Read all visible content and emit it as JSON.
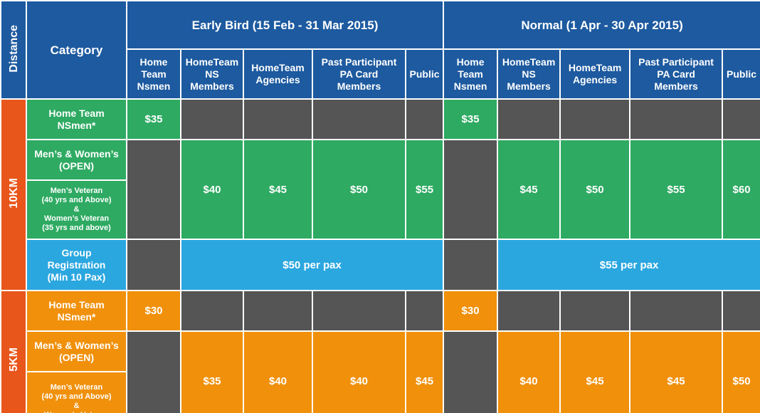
{
  "header": {
    "distance": "Distance",
    "category": "Category",
    "periods": [
      {
        "title": "Early Bird (15 Feb - 31 Mar 2015)",
        "columns": [
          [
            "Home",
            "Team",
            "Nsmen"
          ],
          [
            "HomeTeam",
            "NS",
            "Members"
          ],
          [
            "HomeTeam",
            "Agencies"
          ],
          [
            "Past Participant",
            "PA Card",
            "Members"
          ],
          [
            "Public"
          ]
        ]
      },
      {
        "title": "Normal (1 Apr - 30 Apr 2015)",
        "columns": [
          [
            "Home",
            "Team",
            "Nsmen"
          ],
          [
            "HomeTeam",
            "NS",
            "Members"
          ],
          [
            "HomeTeam",
            "Agencies"
          ],
          [
            "Past Participant",
            "PA Card",
            "Members"
          ],
          [
            "Public"
          ]
        ]
      }
    ]
  },
  "sections": [
    {
      "distance": "10KM",
      "color": "#2eaa62",
      "home_team": {
        "label": [
          "Home Team",
          "NSmen*"
        ],
        "prices": [
          "$35",
          "$35"
        ]
      },
      "open": {
        "label": [
          "Men’s & Women’s",
          "(OPEN)"
        ]
      },
      "veteran": {
        "label": [
          "Men’s Veteran",
          "(40 yrs and Above)",
          "&",
          "Women’s Veteran",
          "(35 yrs and above)"
        ]
      },
      "prices": [
        [
          "$40",
          "$45",
          "$50",
          "$55"
        ],
        [
          "$45",
          "$50",
          "$55",
          "$60"
        ]
      ],
      "group": {
        "color": "#2ba7e0",
        "label": [
          "Group",
          "Registration",
          "(Min 10 Pax)"
        ],
        "prices": [
          "$50 per pax",
          "$55 per pax"
        ]
      }
    },
    {
      "distance": "5KM",
      "color": "#f0900b",
      "home_team": {
        "label": [
          "Home Team",
          "NSmen*"
        ],
        "prices": [
          "$30",
          "$30"
        ]
      },
      "open": {
        "label": [
          "Men’s & Women’s",
          "(OPEN)"
        ]
      },
      "veteran": {
        "label": [
          "Men’s Veteran",
          "(40 yrs and Above)",
          "&",
          "Women’s Veteran"
        ]
      },
      "prices": [
        [
          "$35",
          "$40",
          "$40",
          "$45"
        ],
        [
          "$40",
          "$45",
          "$45",
          "$50"
        ]
      ]
    }
  ]
}
